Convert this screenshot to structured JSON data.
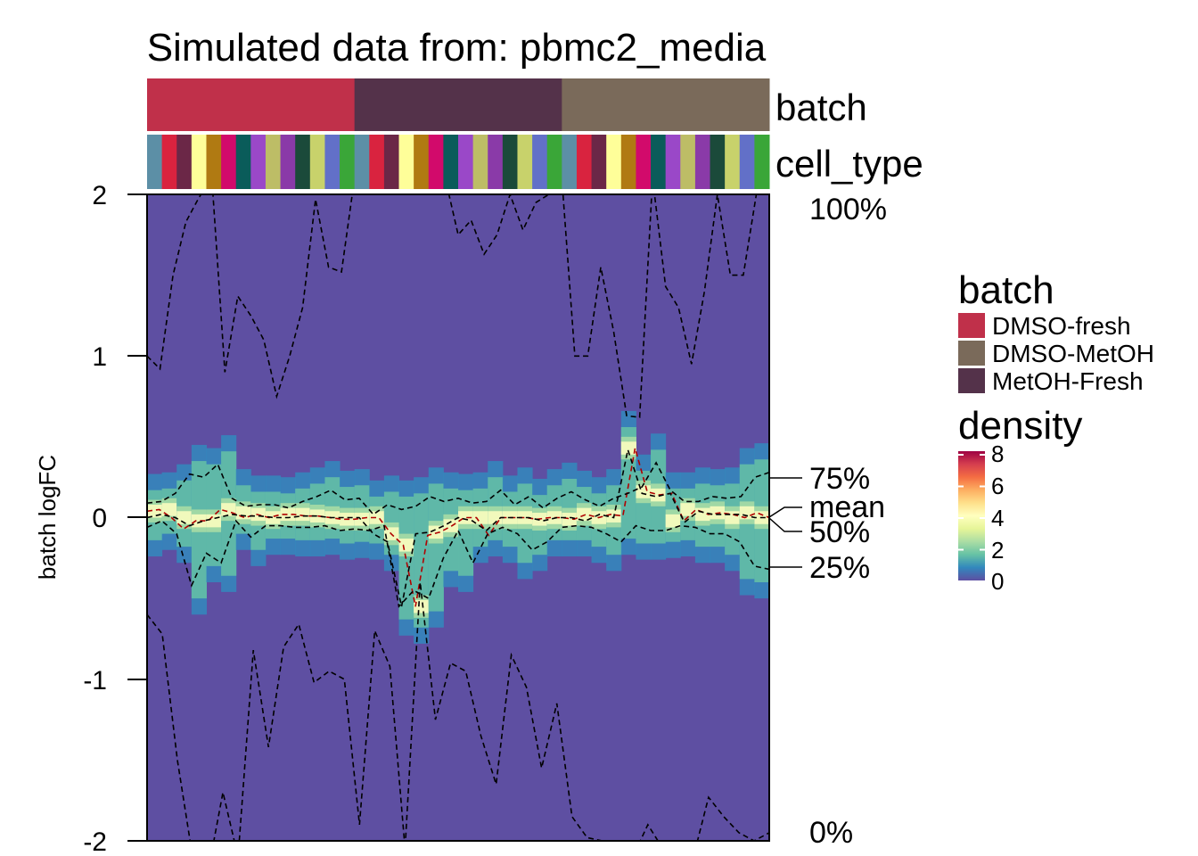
{
  "chart_data": {
    "type": "heatmap",
    "title": "Simulated data from: pbmc2_media",
    "ylabel": "batch logFC",
    "ylim": [
      -2,
      2
    ],
    "yticks": [
      "2",
      "1",
      "0",
      "-1",
      "-2"
    ],
    "annotation_rows": [
      "batch",
      "cell_type"
    ],
    "batch_groups": [
      "DMSO-fresh",
      "MetOH-Fresh",
      "DMSO-MetOH"
    ],
    "n_columns": 42,
    "cell_type_colors": [
      "#5c8fa6",
      "#d9233f",
      "#6b2747",
      "#fefe99",
      "#b07a12",
      "#d20a6b",
      "#0a5c5a",
      "#9a48c8",
      "#bdbd66",
      "#8a3aa8",
      "#1b4a3a",
      "#c8d26b",
      "#6270c8",
      "#3aa638"
    ],
    "quantile_labels": [
      "100%",
      "75%",
      "mean",
      "50%",
      "25%",
      "0%"
    ],
    "series": [
      {
        "values": [
          0.04,
          0.05,
          0.0,
          -0.07,
          -0.02,
          -0.02,
          0.05,
          0.03,
          0.0,
          0.02,
          0.0,
          0.02,
          0.02,
          0.01,
          0.01,
          0.0,
          -0.01,
          -0.01,
          0.0,
          0.0,
          -0.1,
          -0.17,
          -0.55,
          -0.11,
          -0.09,
          -0.05,
          0.0,
          0.0,
          -0.11,
          0.0,
          0.0,
          0.0,
          -0.01,
          0.0,
          0.0,
          -0.01,
          0.02,
          0.0,
          0.02,
          0.01,
          0.43,
          0.16,
          0.14,
          0.15,
          -0.02,
          0.05,
          0.02,
          0.03,
          0.02,
          0.0,
          0.03,
          0.0
        ]
      },
      {
        "values": [
          1.0,
          0.92,
          1.5,
          1.83,
          1.98,
          2.1,
          0.9,
          1.37,
          1.25,
          1.1,
          0.75,
          1.0,
          1.3,
          1.97,
          1.55,
          1.52,
          2.1,
          2.2,
          2.05,
          2.05,
          2.0,
          2.1,
          2.0,
          2.1,
          1.75,
          1.84,
          1.63,
          1.75,
          2.0,
          1.78,
          1.95,
          2.0,
          2.1,
          1.0,
          1.0,
          1.55,
          1.15,
          0.63,
          0.62,
          2.1,
          1.43,
          1.3,
          0.95,
          1.4,
          2.0,
          1.5,
          1.5,
          2.0,
          2.0
        ]
      },
      {
        "values": [
          0.09,
          0.1,
          0.15,
          0.27,
          0.25,
          0.33,
          0.12,
          0.07,
          0.08,
          0.08,
          0.06,
          0.1,
          0.13,
          0.17,
          0.11,
          0.12,
          0.02,
          0.08,
          0.05,
          0.07,
          0.13,
          0.1,
          0.12,
          0.09,
          0.1,
          0.17,
          0.08,
          0.13,
          0.06,
          0.12,
          0.16,
          0.11,
          0.07,
          0.12,
          0.15,
          0.19,
          0.34,
          0.17,
          0.1,
          0.1,
          0.13,
          0.12,
          0.13,
          0.25,
          0.28
        ]
      },
      {
        "values": [
          0.0,
          0.02,
          0.0,
          -0.05,
          -0.02,
          0.0,
          0.02,
          0.01,
          0.01,
          0.0,
          0.0,
          0.01,
          0.01,
          0.0,
          0.0,
          0.0,
          -0.1,
          -0.15,
          -0.55,
          -0.1,
          -0.09,
          -0.05,
          0.0,
          -0.02,
          -0.08,
          0.0,
          0.0,
          0.0,
          -0.02,
          0.0,
          0.0,
          -0.02,
          0.02,
          0.0,
          0.42,
          0.15,
          0.13,
          0.15,
          -0.03,
          0.04,
          0.02,
          0.02,
          0.02,
          0.0,
          0.0
        ]
      },
      {
        "values": [
          -0.06,
          -0.02,
          -0.1,
          -0.42,
          -0.22,
          -0.28,
          -0.02,
          -0.12,
          -0.05,
          -0.05,
          -0.06,
          -0.06,
          -0.05,
          -0.08,
          -0.07,
          -0.08,
          -0.05,
          -0.55,
          -0.45,
          -0.5,
          -0.25,
          -0.08,
          -0.28,
          -0.1,
          -0.06,
          -0.1,
          -0.2,
          -0.15,
          -0.06,
          -0.05,
          -0.06,
          -0.1,
          -0.15,
          -0.05,
          -0.08,
          -0.08,
          -0.05,
          -0.06,
          -0.1,
          -0.1,
          -0.15,
          -0.3,
          -0.32
        ]
      },
      {
        "values": [
          -0.6,
          -0.72,
          -1.5,
          -2.1,
          -2.2,
          -1.7,
          -2.1,
          -0.82,
          -1.42,
          -0.8,
          -0.66,
          -1.02,
          -0.95,
          -1.0,
          -1.9,
          -0.7,
          -0.92,
          -2.05,
          -0.4,
          -1.25,
          -0.9,
          -0.95,
          -1.35,
          -1.65,
          -0.85,
          -1.05,
          -1.55,
          -1.15,
          -1.85,
          -1.98,
          -2.0,
          -2.05,
          -2.1,
          -1.9,
          -2.05,
          -2.1,
          -2.1,
          -1.73,
          -1.85,
          -1.95,
          -2.0,
          -1.95
        ]
      }
    ]
  },
  "labels": {
    "title": "Simulated data from: pbmc2_media",
    "batch_row": "batch",
    "cell_type_row": "cell_type",
    "ylabel": "batch logFC",
    "yticks": [
      "2",
      "1",
      "0",
      "-1",
      "-2"
    ],
    "q100": "100%",
    "q75": "75%",
    "qmean": "mean",
    "q50": "50%",
    "q25": "25%",
    "q0": "0%"
  },
  "legend": {
    "batch_title": "batch",
    "batch_items": [
      {
        "label": "DMSO-fresh",
        "color": "#c0304a"
      },
      {
        "label": "DMSO-MetOH",
        "color": "#7a6a5a"
      },
      {
        "label": "MetOH-Fresh",
        "color": "#54324a"
      }
    ],
    "density_title": "density",
    "density_ticks": [
      "8",
      "6",
      "4",
      "2",
      "0"
    ],
    "density_colors": [
      "#5e4fa2",
      "#3288bd",
      "#66c2a5",
      "#abdda4",
      "#e6f598",
      "#ffffbf",
      "#fee08b",
      "#fdae61",
      "#f46d43",
      "#d53e4f",
      "#9e0142"
    ]
  },
  "colors": {
    "batch": [
      "#c0304a",
      "#54324a",
      "#7a6a5a"
    ],
    "background_fill": "#5e4fa2",
    "mean_line": "#b00000",
    "quantile_line": "#000000"
  }
}
